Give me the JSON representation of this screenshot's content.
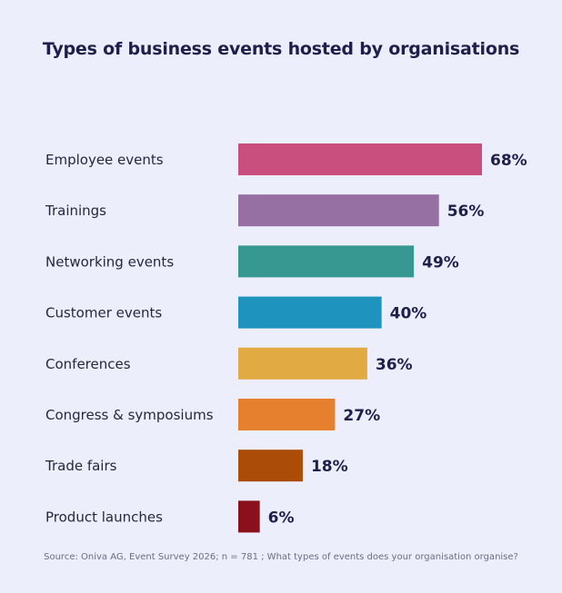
{
  "title": "Types of business events hosted by organisations",
  "source": "Source: Oniva AG, Event Survey 2026; n = 781 ; What types of events does your organisation organise?",
  "chart_data": {
    "type": "bar",
    "orientation": "horizontal",
    "title": "Types of business events hosted by organisations",
    "categories": [
      "Employee events",
      "Trainings",
      "Networking events",
      "Customer events",
      "Conferences",
      "Congress & symposiums",
      "Trade fairs",
      "Product launches"
    ],
    "values": [
      68,
      56,
      49,
      40,
      36,
      27,
      18,
      6
    ],
    "value_labels": [
      "68%",
      "56%",
      "49%",
      "40%",
      "36%",
      "27%",
      "18%",
      "6%"
    ],
    "unit": "%",
    "colors": [
      "#c94f7f",
      "#9670a3",
      "#379791",
      "#1e93be",
      "#e1aa43",
      "#e67f2e",
      "#ab4c08",
      "#8a111c"
    ],
    "grid": false,
    "legend": "none"
  }
}
